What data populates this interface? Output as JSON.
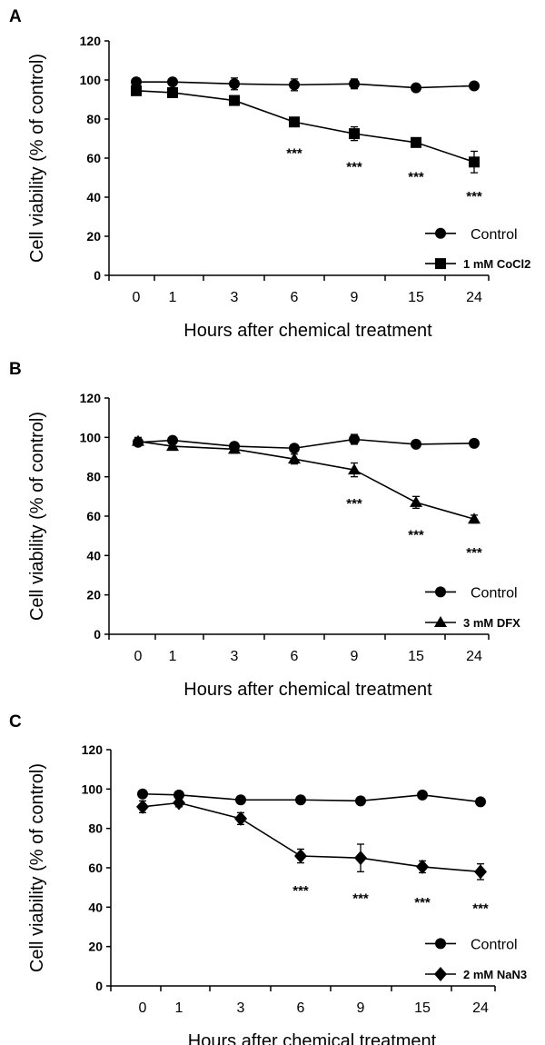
{
  "chart_data": [
    {
      "panel": "A",
      "type": "line",
      "xlabel": "Hours after chemical treatment",
      "ylabel": "Cell viability (% of control)",
      "ylim": [
        0,
        120
      ],
      "yticks": [
        0,
        20,
        40,
        60,
        80,
        100,
        120
      ],
      "categories": [
        "0",
        "1",
        "3",
        "6",
        "9",
        "15",
        "24"
      ],
      "series": [
        {
          "name": "Control",
          "marker": "circle",
          "values": [
            99,
            99,
            98,
            97.5,
            98,
            96,
            97
          ],
          "errors": [
            1.5,
            1.5,
            3,
            3,
            2.5,
            1.5,
            1.5
          ]
        },
        {
          "name": "1 mM CoCl2",
          "marker": "square",
          "values": [
            94.5,
            93.5,
            89.5,
            78.5,
            72.5,
            68,
            58
          ],
          "errors": [
            2,
            2.5,
            2,
            2,
            3.5,
            2,
            5.5
          ]
        }
      ],
      "annotations": [
        {
          "category": "6",
          "text": "***",
          "y": 63
        },
        {
          "category": "9",
          "text": "***",
          "y": 56
        },
        {
          "category": "15",
          "text": "***",
          "y": 51
        },
        {
          "category": "24",
          "text": "***",
          "y": 41
        }
      ],
      "legend_position": "bottom-right"
    },
    {
      "panel": "B",
      "type": "line",
      "xlabel": "Hours after chemical treatment",
      "ylabel": "Cell viability (% of control)",
      "ylim": [
        0,
        120
      ],
      "yticks": [
        0,
        20,
        40,
        60,
        80,
        100,
        120
      ],
      "categories": [
        "0",
        "1",
        "3",
        "6",
        "9",
        "15",
        "24"
      ],
      "series": [
        {
          "name": "Control",
          "marker": "circle",
          "values": [
            97.5,
            98.5,
            95.5,
            94.5,
            99,
            96.5,
            97
          ],
          "errors": [
            1.5,
            1.5,
            1.5,
            1.5,
            2.5,
            1.5,
            1.5
          ]
        },
        {
          "name": "3 mM DFX",
          "marker": "triangle",
          "values": [
            98,
            95.5,
            94,
            89,
            83.5,
            67,
            58.5
          ],
          "errors": [
            2,
            2,
            2,
            2.5,
            3.5,
            3,
            2
          ]
        }
      ],
      "annotations": [
        {
          "category": "9",
          "text": "***",
          "y": 67
        },
        {
          "category": "15",
          "text": "***",
          "y": 51
        },
        {
          "category": "24",
          "text": "***",
          "y": 42
        }
      ],
      "legend_position": "bottom-right"
    },
    {
      "panel": "C",
      "type": "line",
      "xlabel": "Hours after chemical treatment",
      "ylabel": "Cell viability (% of control)",
      "ylim": [
        0,
        120
      ],
      "yticks": [
        0,
        20,
        40,
        60,
        80,
        100,
        120
      ],
      "categories": [
        "0",
        "1",
        "3",
        "6",
        "9",
        "15",
        "24"
      ],
      "series": [
        {
          "name": "Control",
          "marker": "circle",
          "values": [
            97.5,
            97,
            94.5,
            94.5,
            94,
            97,
            93.5
          ],
          "errors": [
            1.5,
            1.5,
            1.5,
            1.5,
            1.5,
            1.5,
            1.5
          ]
        },
        {
          "name": "2 mM NaN3",
          "marker": "diamond",
          "values": [
            91,
            93,
            85,
            66,
            65,
            60.5,
            58
          ],
          "errors": [
            3,
            2,
            3,
            3.5,
            7,
            3,
            4
          ]
        }
      ],
      "annotations": [
        {
          "category": "6",
          "text": "***",
          "y": 49
        },
        {
          "category": "9",
          "text": "***",
          "y": 45
        },
        {
          "category": "15",
          "text": "***",
          "y": 43
        },
        {
          "category": "24",
          "text": "***",
          "y": 40
        }
      ],
      "legend_position": "bottom-right"
    }
  ]
}
